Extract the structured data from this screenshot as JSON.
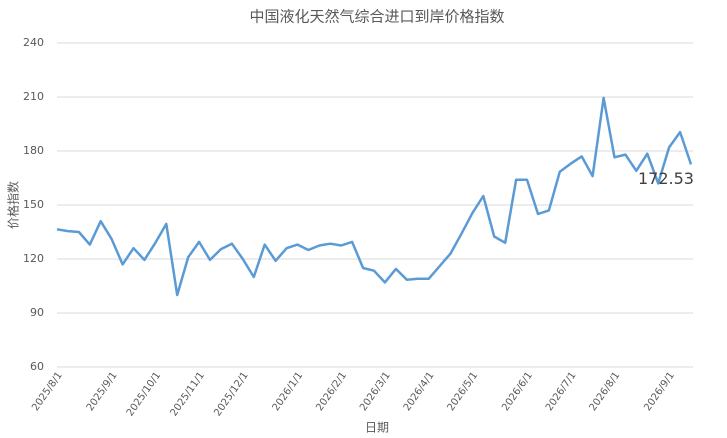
{
  "chart_data": {
    "type": "line",
    "title": "中国液化天然气综合进口到岸价格指数",
    "x_label": "日期",
    "y_label": "价格指数",
    "categories": [
      "2025/8/1",
      null,
      null,
      null,
      null,
      "2025/9/1",
      null,
      null,
      null,
      "2025/10/1",
      null,
      null,
      null,
      "2025/11/1",
      null,
      null,
      null,
      "2025/12/1",
      null,
      null,
      null,
      null,
      "2026/1/1",
      null,
      null,
      null,
      "2026/2/1",
      null,
      null,
      null,
      "2026/3/1",
      null,
      null,
      null,
      "2026/4/1",
      null,
      null,
      null,
      "2026/5/1",
      null,
      null,
      null,
      null,
      "2026/6/1",
      null,
      null,
      null,
      "2026/7/1",
      null,
      null,
      null,
      "2026/8/1",
      null,
      null,
      null,
      null,
      "2026/9/1",
      null,
      null
    ],
    "values": [
      136.5,
      135.5,
      135,
      128,
      141,
      131,
      117,
      126,
      119.5,
      129,
      139.5,
      100,
      121,
      129.5,
      119.5,
      125.5,
      128.5,
      120,
      110,
      128,
      119,
      126,
      128,
      125,
      127.5,
      128.5,
      127.5,
      129.5,
      115,
      113.5,
      107,
      114.5,
      108.5,
      109,
      109,
      116,
      123,
      134,
      145.5,
      155,
      132.5,
      129,
      164,
      164,
      145,
      147,
      168.5,
      173,
      177,
      166,
      209.5,
      176.5,
      178,
      169,
      178.5,
      162,
      182,
      190.5,
      172.53
    ],
    "color": "#5b9bd5",
    "ylim": [
      60,
      240
    ],
    "yticks": [
      60,
      90,
      120,
      150,
      180,
      210,
      240
    ],
    "grid": true,
    "last_value_label": true
  }
}
